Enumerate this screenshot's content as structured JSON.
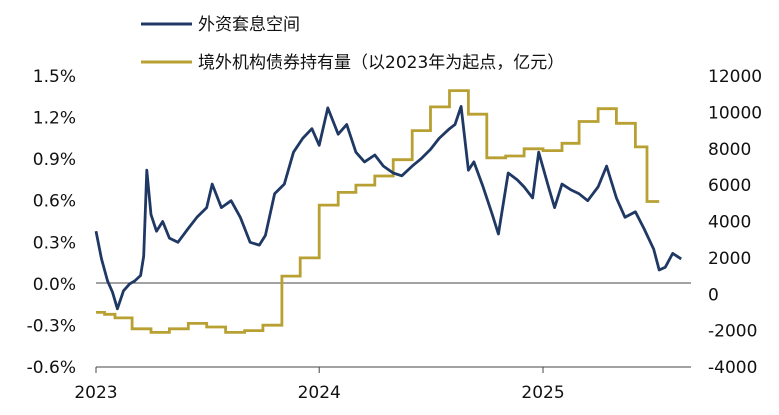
{
  "chart_data": {
    "type": "line",
    "title": "",
    "legend": {
      "placement": "top",
      "entries": [
        {
          "label": "外资套息空间",
          "color": "#1f3864",
          "axis": "left"
        },
        {
          "label": "境外机构债券持有量（以2023年为起点，亿元）",
          "color": "#b8a033",
          "axis": "right"
        }
      ]
    },
    "x_axis": {
      "type": "date",
      "range": [
        "2023-01-01",
        "2025-08-31"
      ],
      "tick_labels": [
        "2023",
        "2024",
        "2025"
      ]
    },
    "y_left": {
      "range": [
        -0.6,
        1.5
      ],
      "unit": "%",
      "tick_values": [
        -0.6,
        -0.3,
        0.0,
        0.3,
        0.6,
        0.9,
        1.2,
        1.5
      ],
      "tick_labels": [
        "-0.6%",
        "-0.3%",
        "0.0%",
        "0.3%",
        "0.6%",
        "0.9%",
        "1.2%",
        "1.5%"
      ]
    },
    "y_right": {
      "range": [
        -4000,
        12000
      ],
      "tick_values": [
        -4000,
        -2000,
        0,
        2000,
        4000,
        6000,
        8000,
        10000,
        12000
      ],
      "tick_labels": [
        "-4000",
        "-2000",
        "0",
        "2000",
        "4000",
        "6000",
        "8000",
        "10000",
        "12000"
      ]
    },
    "series": [
      {
        "name": "外资套息空间",
        "axis": "left",
        "color": "#1f3864",
        "points": [
          [
            "2023-01-01",
            0.38
          ],
          [
            "2023-01-10",
            0.18
          ],
          [
            "2023-01-20",
            0.02
          ],
          [
            "2023-01-28",
            -0.06
          ],
          [
            "2023-02-05",
            -0.18
          ],
          [
            "2023-02-15",
            -0.05
          ],
          [
            "2023-02-25",
            0.0
          ],
          [
            "2023-03-05",
            0.02
          ],
          [
            "2023-03-15",
            0.06
          ],
          [
            "2023-03-20",
            0.2
          ],
          [
            "2023-03-25",
            0.82
          ],
          [
            "2023-04-01",
            0.5
          ],
          [
            "2023-04-10",
            0.38
          ],
          [
            "2023-04-20",
            0.45
          ],
          [
            "2023-05-01",
            0.33
          ],
          [
            "2023-05-15",
            0.3
          ],
          [
            "2023-06-01",
            0.4
          ],
          [
            "2023-06-15",
            0.48
          ],
          [
            "2023-07-01",
            0.55
          ],
          [
            "2023-07-10",
            0.72
          ],
          [
            "2023-07-25",
            0.55
          ],
          [
            "2023-08-10",
            0.6
          ],
          [
            "2023-08-25",
            0.48
          ],
          [
            "2023-09-10",
            0.3
          ],
          [
            "2023-09-25",
            0.28
          ],
          [
            "2023-10-05",
            0.35
          ],
          [
            "2023-10-20",
            0.65
          ],
          [
            "2023-11-05",
            0.72
          ],
          [
            "2023-11-20",
            0.95
          ],
          [
            "2023-12-05",
            1.05
          ],
          [
            "2023-12-20",
            1.12
          ],
          [
            "2024-01-01",
            1.0
          ],
          [
            "2024-01-15",
            1.27
          ],
          [
            "2024-02-01",
            1.08
          ],
          [
            "2024-02-15",
            1.15
          ],
          [
            "2024-03-01",
            0.95
          ],
          [
            "2024-03-15",
            0.88
          ],
          [
            "2024-04-01",
            0.93
          ],
          [
            "2024-04-15",
            0.85
          ],
          [
            "2024-05-01",
            0.8
          ],
          [
            "2024-05-15",
            0.78
          ],
          [
            "2024-06-01",
            0.85
          ],
          [
            "2024-06-15",
            0.9
          ],
          [
            "2024-07-01",
            0.97
          ],
          [
            "2024-07-15",
            1.05
          ],
          [
            "2024-08-01",
            1.12
          ],
          [
            "2024-08-10",
            1.15
          ],
          [
            "2024-08-20",
            1.28
          ],
          [
            "2024-09-01",
            0.82
          ],
          [
            "2024-09-10",
            0.88
          ],
          [
            "2024-09-25",
            0.7
          ],
          [
            "2024-10-10",
            0.5
          ],
          [
            "2024-10-20",
            0.36
          ],
          [
            "2024-11-05",
            0.8
          ],
          [
            "2024-11-20",
            0.75
          ],
          [
            "2024-12-01",
            0.7
          ],
          [
            "2024-12-15",
            0.62
          ],
          [
            "2024-12-25",
            0.95
          ],
          [
            "2025-01-10",
            0.7
          ],
          [
            "2025-01-20",
            0.55
          ],
          [
            "2025-02-01",
            0.72
          ],
          [
            "2025-02-15",
            0.68
          ],
          [
            "2025-03-01",
            0.65
          ],
          [
            "2025-03-15",
            0.6
          ],
          [
            "2025-04-01",
            0.7
          ],
          [
            "2025-04-15",
            0.85
          ],
          [
            "2025-05-01",
            0.62
          ],
          [
            "2025-05-15",
            0.48
          ],
          [
            "2025-06-01",
            0.52
          ],
          [
            "2025-06-15",
            0.4
          ],
          [
            "2025-07-01",
            0.25
          ],
          [
            "2025-07-10",
            0.1
          ],
          [
            "2025-07-20",
            0.12
          ],
          [
            "2025-08-01",
            0.22
          ],
          [
            "2025-08-15",
            0.18
          ]
        ]
      },
      {
        "name": "境外机构债券持有量（以2023年为起点，亿元）",
        "axis": "right",
        "color": "#b8a033",
        "step": true,
        "points": [
          [
            "2023-01-01",
            -1000
          ],
          [
            "2023-01-15",
            -1100
          ],
          [
            "2023-02-01",
            -1300
          ],
          [
            "2023-03-01",
            -1900
          ],
          [
            "2023-04-01",
            -2100
          ],
          [
            "2023-05-01",
            -1900
          ],
          [
            "2023-06-01",
            -1600
          ],
          [
            "2023-07-01",
            -1800
          ],
          [
            "2023-08-01",
            -2100
          ],
          [
            "2023-09-01",
            -2000
          ],
          [
            "2023-10-01",
            -1700
          ],
          [
            "2023-11-01",
            1000
          ],
          [
            "2023-12-01",
            2000
          ],
          [
            "2024-01-01",
            4900
          ],
          [
            "2024-02-01",
            5600
          ],
          [
            "2024-03-01",
            6000
          ],
          [
            "2024-04-01",
            6500
          ],
          [
            "2024-05-01",
            7400
          ],
          [
            "2024-06-01",
            9000
          ],
          [
            "2024-07-01",
            10300
          ],
          [
            "2024-08-01",
            11200
          ],
          [
            "2024-09-01",
            9900
          ],
          [
            "2024-10-01",
            7500
          ],
          [
            "2024-11-01",
            7600
          ],
          [
            "2024-12-01",
            8000
          ],
          [
            "2025-01-01",
            7900
          ],
          [
            "2025-02-01",
            8300
          ],
          [
            "2025-03-01",
            9500
          ],
          [
            "2025-04-01",
            10200
          ],
          [
            "2025-05-01",
            9400
          ],
          [
            "2025-06-01",
            8100
          ],
          [
            "2025-06-20",
            5100
          ],
          [
            "2025-07-10",
            5100
          ]
        ]
      }
    ]
  }
}
